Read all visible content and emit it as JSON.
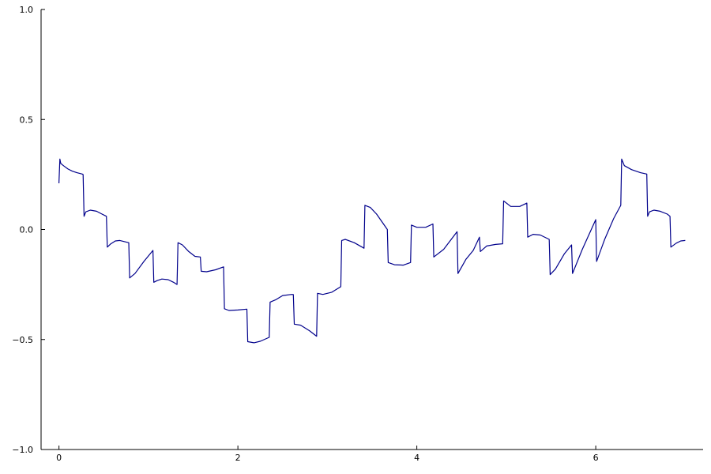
{
  "chart_data": {
    "type": "line",
    "title": "",
    "xlabel": "",
    "ylabel": "",
    "xlim": [
      -0.2,
      7.2
    ],
    "ylim": [
      -1,
      1
    ],
    "x_ticks": [
      0,
      2,
      4,
      6
    ],
    "x_tick_labels": [
      "0",
      "2",
      "4",
      "6"
    ],
    "y_ticks": [
      1.0,
      0.5,
      0.0,
      -0.5,
      -1.0
    ],
    "y_tick_labels": [
      "1.0",
      "0.5",
      "0.0",
      "−0.5",
      "−1.0"
    ],
    "grid": false,
    "legend": "none",
    "series": [
      {
        "color": "#00008b",
        "points": [
          [
            0.0,
            0.21
          ],
          [
            0.01,
            0.32
          ],
          [
            0.02,
            0.3
          ],
          [
            0.05,
            0.29
          ],
          [
            0.1,
            0.275
          ],
          [
            0.15,
            0.265
          ],
          [
            0.2,
            0.258
          ],
          [
            0.26,
            0.252
          ],
          [
            0.27,
            0.25
          ],
          [
            0.28,
            0.06
          ],
          [
            0.3,
            0.08
          ],
          [
            0.35,
            0.088
          ],
          [
            0.42,
            0.083
          ],
          [
            0.47,
            0.072
          ],
          [
            0.52,
            0.062
          ],
          [
            0.53,
            0.06
          ],
          [
            0.54,
            -0.08
          ],
          [
            0.58,
            -0.065
          ],
          [
            0.63,
            -0.052
          ],
          [
            0.68,
            -0.05
          ],
          [
            0.73,
            -0.055
          ],
          [
            0.78,
            -0.06
          ],
          [
            0.79,
            -0.22
          ],
          [
            0.85,
            -0.2
          ],
          [
            0.95,
            -0.145
          ],
          [
            1.05,
            -0.095
          ],
          [
            1.06,
            -0.24
          ],
          [
            1.1,
            -0.232
          ],
          [
            1.15,
            -0.225
          ],
          [
            1.22,
            -0.228
          ],
          [
            1.28,
            -0.24
          ],
          [
            1.32,
            -0.25
          ],
          [
            1.33,
            -0.06
          ],
          [
            1.38,
            -0.07
          ],
          [
            1.45,
            -0.1
          ],
          [
            1.52,
            -0.122
          ],
          [
            1.58,
            -0.125
          ],
          [
            1.59,
            -0.19
          ],
          [
            1.65,
            -0.192
          ],
          [
            1.75,
            -0.183
          ],
          [
            1.84,
            -0.17
          ],
          [
            1.85,
            -0.36
          ],
          [
            1.9,
            -0.368
          ],
          [
            2.0,
            -0.366
          ],
          [
            2.1,
            -0.362
          ],
          [
            2.11,
            -0.51
          ],
          [
            2.18,
            -0.515
          ],
          [
            2.25,
            -0.508
          ],
          [
            2.35,
            -0.49
          ],
          [
            2.36,
            -0.33
          ],
          [
            2.42,
            -0.32
          ],
          [
            2.5,
            -0.3
          ],
          [
            2.6,
            -0.295
          ],
          [
            2.62,
            -0.296
          ],
          [
            2.63,
            -0.43
          ],
          [
            2.7,
            -0.435
          ],
          [
            2.8,
            -0.46
          ],
          [
            2.88,
            -0.485
          ],
          [
            2.89,
            -0.29
          ],
          [
            2.95,
            -0.295
          ],
          [
            3.05,
            -0.285
          ],
          [
            3.15,
            -0.26
          ],
          [
            3.16,
            -0.05
          ],
          [
            3.2,
            -0.045
          ],
          [
            3.3,
            -0.06
          ],
          [
            3.41,
            -0.085
          ],
          [
            3.42,
            0.11
          ],
          [
            3.48,
            0.1
          ],
          [
            3.55,
            0.07
          ],
          [
            3.67,
            0.0
          ],
          [
            3.68,
            -0.15
          ],
          [
            3.75,
            -0.16
          ],
          [
            3.85,
            -0.162
          ],
          [
            3.93,
            -0.15
          ],
          [
            3.94,
            0.02
          ],
          [
            4.0,
            0.01
          ],
          [
            4.1,
            0.01
          ],
          [
            4.18,
            0.025
          ],
          [
            4.19,
            -0.125
          ],
          [
            4.3,
            -0.09
          ],
          [
            4.45,
            -0.01
          ],
          [
            4.46,
            -0.2
          ],
          [
            4.55,
            -0.135
          ],
          [
            4.63,
            -0.095
          ],
          [
            4.7,
            -0.035
          ],
          [
            4.71,
            -0.1
          ],
          [
            4.78,
            -0.075
          ],
          [
            4.88,
            -0.068
          ],
          [
            4.96,
            -0.065
          ],
          [
            4.97,
            0.13
          ],
          [
            5.05,
            0.105
          ],
          [
            5.15,
            0.105
          ],
          [
            5.23,
            0.12
          ],
          [
            5.24,
            -0.035
          ],
          [
            5.3,
            -0.022
          ],
          [
            5.38,
            -0.025
          ],
          [
            5.48,
            -0.045
          ],
          [
            5.49,
            -0.205
          ],
          [
            5.55,
            -0.18
          ],
          [
            5.65,
            -0.11
          ],
          [
            5.73,
            -0.07
          ],
          [
            5.74,
            -0.2
          ],
          [
            5.85,
            -0.09
          ],
          [
            6.0,
            0.045
          ],
          [
            6.01,
            -0.145
          ],
          [
            6.1,
            -0.045
          ],
          [
            6.2,
            0.05
          ],
          [
            6.28,
            0.11
          ],
          [
            6.29,
            0.32
          ],
          [
            6.32,
            0.29
          ],
          [
            6.4,
            0.272
          ],
          [
            6.5,
            0.258
          ],
          [
            6.57,
            0.252
          ],
          [
            6.58,
            0.06
          ],
          [
            6.6,
            0.08
          ],
          [
            6.65,
            0.088
          ],
          [
            6.72,
            0.083
          ],
          [
            6.8,
            0.07
          ],
          [
            6.83,
            0.06
          ],
          [
            6.84,
            -0.08
          ],
          [
            6.9,
            -0.062
          ],
          [
            6.95,
            -0.052
          ],
          [
            7.0,
            -0.05
          ]
        ]
      }
    ]
  }
}
